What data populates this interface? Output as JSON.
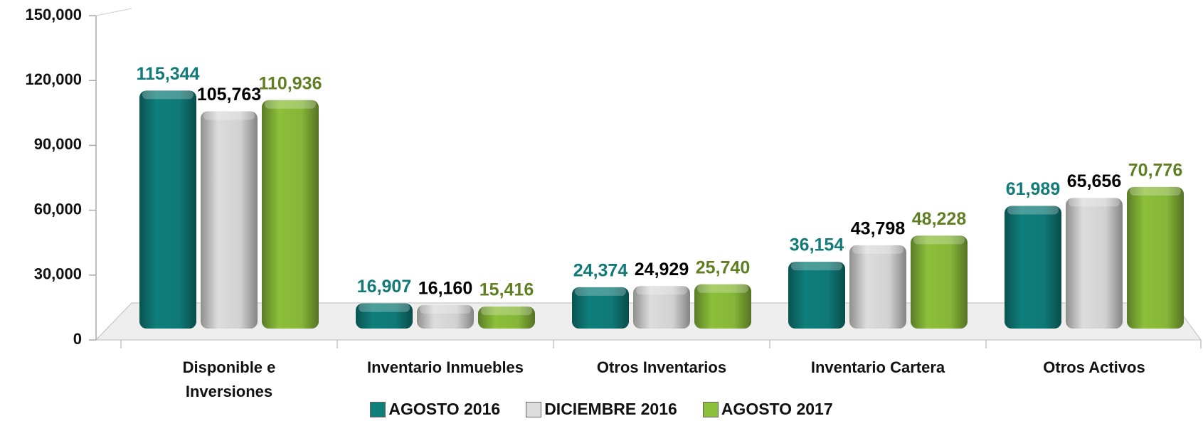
{
  "chart_data": {
    "type": "bar3d",
    "categories": [
      "Disponible e Inversiones",
      "Inventario Inmuebles",
      "Otros Inventarios",
      "Inventario Cartera",
      "Otros Activos"
    ],
    "series": [
      {
        "name": "AGOSTO 2016",
        "color": "#0f7f7c",
        "label_color": "#127a78",
        "values": [
          115344,
          16907,
          24374,
          36154,
          61989
        ],
        "value_labels": [
          "115,344",
          "16,907",
          "24,374",
          "36,154",
          "61,989"
        ]
      },
      {
        "name": "DICIEMBRE 2016",
        "color": "#dcdcdc",
        "label_color": "#000000",
        "values": [
          105763,
          16160,
          24929,
          43798,
          65656
        ],
        "value_labels": [
          "105,763",
          "16,160",
          "24,929",
          "43,798",
          "65,656"
        ]
      },
      {
        "name": "AGOSTO 2017",
        "color": "#8cbf3a",
        "label_color": "#5f7f22",
        "values": [
          110936,
          15416,
          25740,
          48228,
          70776
        ],
        "value_labels": [
          "110,936",
          "15,416",
          "25,740",
          "48,228",
          "70,776"
        ]
      }
    ],
    "ylim": [
      0,
      150000
    ],
    "yticks": [
      0,
      {
        "value": 30000,
        "label": "30,000"
      },
      {
        "value": 60000,
        "label": "60,000"
      },
      {
        "value": 90000,
        "label": "90,000"
      },
      {
        "value": 120000,
        "label": "120,000"
      },
      {
        "value": 150000,
        "label": "150,000"
      }
    ],
    "legend": "bottom"
  }
}
